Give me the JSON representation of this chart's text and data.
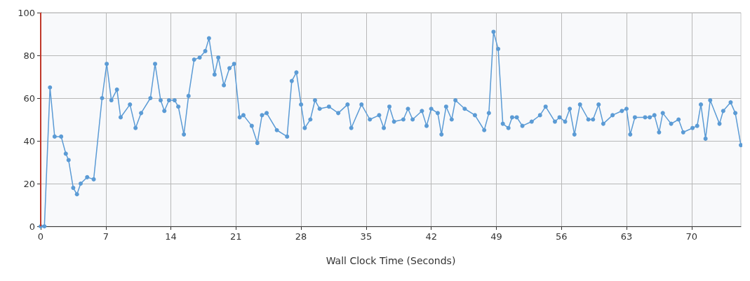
{
  "chart_data": {
    "type": "line",
    "xlabel": "Wall Clock Time (Seconds)",
    "xlim": [
      0,
      75.3
    ],
    "xticks": [
      0,
      7,
      14,
      21,
      28,
      35,
      42,
      49,
      56,
      63,
      70
    ],
    "ylim": [
      0,
      100
    ],
    "yticks": [
      0,
      20,
      40,
      60,
      80,
      100
    ],
    "grid": true,
    "marker": "circle",
    "line_style": "solid",
    "ref_lines": [
      {
        "axis": "x",
        "value": 0,
        "color": "#c0392b"
      }
    ],
    "series": [
      {
        "color": "#5b9bd5",
        "x": [
          0,
          0.4,
          1,
          1.5,
          2.2,
          2.7,
          3,
          3.5,
          3.9,
          4.3,
          5,
          5.7,
          6.6,
          7.1,
          7.6,
          8.2,
          8.6,
          9.6,
          10.2,
          10.8,
          11.8,
          12.3,
          12.9,
          13.3,
          13.8,
          14.4,
          14.8,
          15.4,
          15.9,
          16.5,
          17.1,
          17.7,
          18.1,
          18.7,
          19.1,
          19.7,
          20.3,
          20.8,
          21.4,
          21.8,
          22.7,
          23.3,
          23.8,
          24.3,
          25.4,
          26.5,
          27,
          27.5,
          28,
          28.4,
          29,
          29.5,
          30,
          31,
          32,
          33,
          33.4,
          34.5,
          35.4,
          36.4,
          36.9,
          37.5,
          38,
          39,
          39.5,
          40,
          41,
          41.5,
          42,
          42.7,
          43.1,
          43.6,
          44.2,
          44.6,
          45.6,
          46.7,
          47.7,
          48.2,
          48.7,
          49.2,
          49.7,
          50.3,
          50.7,
          51.2,
          51.8,
          52.8,
          53.7,
          54.3,
          55.3,
          55.8,
          56.4,
          56.9,
          57.4,
          58,
          58.9,
          59.4,
          60,
          60.5,
          61.5,
          62.5,
          63,
          63.4,
          63.9,
          65,
          65.5,
          66,
          66.5,
          66.9,
          67.8,
          68.6,
          69.1,
          70.1,
          70.6,
          71,
          71.5,
          72,
          73,
          73.4,
          74.2,
          74.7,
          75.3
        ],
        "values": [
          0,
          0,
          65,
          42,
          42,
          34,
          31,
          18,
          15,
          20,
          23,
          22,
          60,
          76,
          59,
          64,
          51,
          57,
          46,
          53,
          60,
          76,
          59,
          54,
          59,
          59,
          56,
          43,
          61,
          78,
          79,
          82,
          88,
          71,
          79,
          66,
          74,
          76,
          51,
          52,
          47,
          39,
          52,
          53,
          45,
          42,
          68,
          72,
          57,
          46,
          50,
          59,
          55,
          56,
          53,
          57,
          46,
          57,
          50,
          52,
          46,
          56,
          49,
          50,
          55,
          50,
          54,
          47,
          55,
          53,
          43,
          56,
          50,
          59,
          55,
          52,
          45,
          53,
          91,
          83,
          48,
          46,
          51,
          51,
          47,
          49,
          52,
          56,
          49,
          51,
          49,
          55,
          43,
          57,
          50,
          50,
          57,
          48,
          52,
          54,
          55,
          43,
          51,
          51,
          51,
          52,
          44,
          53,
          48,
          50,
          44,
          46,
          47,
          57,
          41,
          59,
          48,
          54,
          58,
          53,
          38
        ]
      }
    ]
  }
}
